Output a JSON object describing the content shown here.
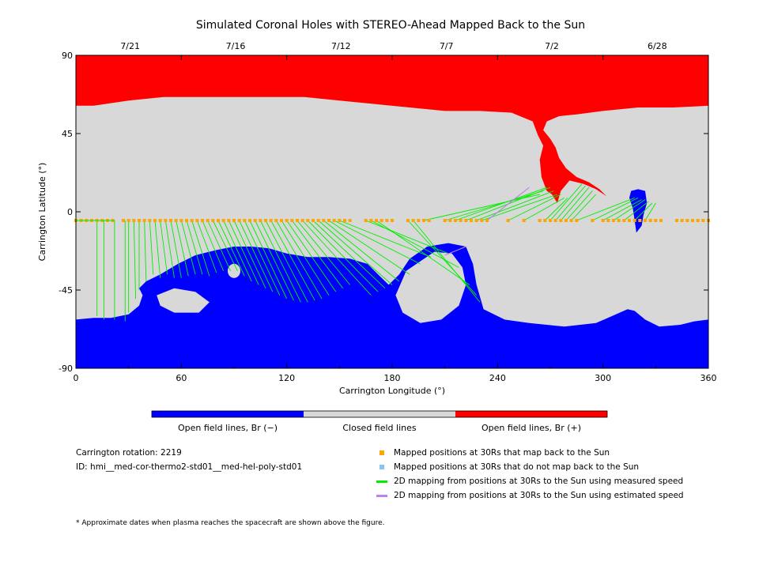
{
  "chart_data": {
    "type": "map",
    "title": "Simulated Coronal Holes with STEREO-Ahead Mapped Back to the Sun",
    "xlabel": "Carrington Longitude (°)",
    "ylabel": "Carrington Latitude (°)",
    "xlim": [
      0,
      360
    ],
    "ylim": [
      -90,
      90
    ],
    "x_ticks": [
      0,
      60,
      120,
      180,
      240,
      300,
      360
    ],
    "y_ticks": [
      90,
      45,
      0,
      -45,
      -90
    ],
    "y_tick_labels": [
      "90",
      "45",
      "0",
      "-45",
      "-90"
    ],
    "date_ticks": [
      {
        "lon": 30,
        "label": "7/21"
      },
      {
        "lon": 90,
        "label": "7/16"
      },
      {
        "lon": 150,
        "label": "7/12"
      },
      {
        "lon": 210,
        "label": "7/7"
      },
      {
        "lon": 270,
        "label": "7/2"
      },
      {
        "lon": 330,
        "label": "6/28"
      }
    ],
    "colors": {
      "open_negative": "#0000ff",
      "closed": "#d8d8d8",
      "open_positive": "#ff0000",
      "mapped_back": "#ffa500",
      "not_mapped": "#88c4f0",
      "measured_speed": "#00ee00",
      "estimated_speed": "#c080f0"
    },
    "colorbar": [
      {
        "label": "Open field lines, Br (−)",
        "color": "#0000ff"
      },
      {
        "label": "Closed field lines",
        "color": "#d8d8d8"
      },
      {
        "label": "Open field lines, Br (+)",
        "color": "#ff0000"
      }
    ],
    "spacecraft_track_lat": -5,
    "mapped_positions_lon": [
      0,
      3,
      6,
      9,
      12,
      15,
      18,
      21,
      27,
      30,
      33,
      36,
      39,
      42,
      45,
      48,
      51,
      54,
      57,
      60,
      63,
      66,
      69,
      72,
      75,
      78,
      81,
      84,
      87,
      90,
      93,
      96,
      99,
      102,
      105,
      108,
      111,
      114,
      117,
      120,
      123,
      126,
      129,
      132,
      135,
      138,
      141,
      144,
      147,
      150,
      153,
      156,
      165,
      168,
      171,
      174,
      177,
      180,
      189,
      192,
      195,
      198,
      201,
      210,
      213,
      216,
      219,
      222,
      225,
      228,
      231,
      234,
      246,
      255,
      264,
      267,
      270,
      273,
      276,
      279,
      282,
      285,
      294,
      300,
      303,
      306,
      309,
      312,
      315,
      318,
      321,
      324,
      327,
      330,
      333,
      342,
      345,
      348,
      351,
      354,
      357,
      360
    ],
    "footpoints_measured": [
      [
        12,
        -60
      ],
      [
        16,
        -62
      ],
      [
        22,
        -62
      ],
      [
        28,
        -63
      ],
      [
        30,
        -58
      ],
      [
        34,
        -50
      ],
      [
        36,
        -45
      ],
      [
        40,
        -40
      ],
      [
        44,
        -36
      ],
      [
        48,
        -38
      ],
      [
        52,
        -36
      ],
      [
        56,
        -38
      ],
      [
        60,
        -38
      ],
      [
        64,
        -37
      ],
      [
        68,
        -36
      ],
      [
        72,
        -36
      ],
      [
        76,
        -37
      ],
      [
        80,
        -35
      ],
      [
        84,
        -34
      ],
      [
        88,
        -34
      ],
      [
        92,
        -34
      ],
      [
        96,
        -37
      ],
      [
        100,
        -40
      ],
      [
        104,
        -42
      ],
      [
        108,
        -44
      ],
      [
        112,
        -46
      ],
      [
        116,
        -48
      ],
      [
        120,
        -50
      ],
      [
        124,
        -51
      ],
      [
        128,
        -52
      ],
      [
        132,
        -52
      ],
      [
        136,
        -51
      ],
      [
        140,
        -50
      ],
      [
        144,
        -48
      ],
      [
        148,
        -46
      ],
      [
        152,
        -44
      ],
      [
        156,
        -42
      ],
      [
        168,
        -48
      ],
      [
        172,
        -46
      ],
      [
        176,
        -44
      ],
      [
        180,
        -42
      ],
      [
        184,
        -40
      ],
      [
        190,
        -36
      ],
      [
        196,
        -30
      ],
      [
        202,
        -26
      ],
      [
        212,
        -24
      ],
      [
        218,
        -32
      ],
      [
        224,
        -42
      ],
      [
        228,
        -48
      ],
      [
        230,
        -52
      ],
      [
        264,
        10
      ],
      [
        266,
        12
      ],
      [
        268,
        14
      ],
      [
        270,
        14
      ],
      [
        272,
        12
      ],
      [
        274,
        10
      ],
      [
        276,
        10
      ],
      [
        278,
        8
      ],
      [
        280,
        8
      ],
      [
        288,
        16
      ],
      [
        290,
        15
      ],
      [
        292,
        14
      ],
      [
        294,
        12
      ],
      [
        296,
        10
      ],
      [
        318,
        8
      ],
      [
        320,
        8
      ],
      [
        322,
        7
      ],
      [
        324,
        7
      ],
      [
        326,
        6
      ],
      [
        328,
        5
      ],
      [
        330,
        5
      ]
    ],
    "footpoints_measured_src": [
      [
        12,
        -5
      ],
      [
        16,
        -5
      ],
      [
        22,
        -5
      ],
      [
        28,
        -5
      ],
      [
        30,
        -5
      ],
      [
        33,
        -5
      ],
      [
        36,
        -5
      ],
      [
        39,
        -5
      ],
      [
        42,
        -5
      ],
      [
        45,
        -5
      ],
      [
        48,
        -5
      ],
      [
        51,
        -5
      ],
      [
        54,
        -5
      ],
      [
        57,
        -5
      ],
      [
        60,
        -5
      ],
      [
        63,
        -5
      ],
      [
        66,
        -5
      ],
      [
        69,
        -5
      ],
      [
        72,
        -5
      ],
      [
        75,
        -5
      ],
      [
        78,
        -5
      ],
      [
        81,
        -5
      ],
      [
        84,
        -5
      ],
      [
        87,
        -5
      ],
      [
        90,
        -5
      ],
      [
        93,
        -5
      ],
      [
        96,
        -5
      ],
      [
        99,
        -5
      ],
      [
        102,
        -5
      ],
      [
        105,
        -5
      ],
      [
        108,
        -5
      ],
      [
        111,
        -5
      ],
      [
        114,
        -5
      ],
      [
        117,
        -5
      ],
      [
        120,
        -5
      ],
      [
        123,
        -5
      ],
      [
        126,
        -5
      ],
      [
        129,
        -5
      ],
      [
        132,
        -5
      ],
      [
        135,
        -5
      ],
      [
        138,
        -5
      ],
      [
        141,
        -5
      ],
      [
        144,
        -5
      ],
      [
        147,
        -5
      ],
      [
        150,
        -5
      ],
      [
        165,
        -5
      ],
      [
        168,
        -5
      ],
      [
        171,
        -5
      ],
      [
        189,
        -5
      ],
      [
        192,
        -5
      ],
      [
        198,
        -5
      ],
      [
        210,
        -5
      ],
      [
        216,
        -5
      ],
      [
        222,
        -5
      ],
      [
        228,
        -5
      ],
      [
        231,
        -5
      ],
      [
        246,
        -5
      ],
      [
        255,
        -5
      ],
      [
        267,
        -5
      ],
      [
        270,
        -5
      ],
      [
        273,
        -5
      ],
      [
        276,
        -5
      ],
      [
        279,
        -5
      ],
      [
        282,
        -5
      ],
      [
        285,
        -5
      ],
      [
        294,
        -5
      ],
      [
        300,
        -5
      ],
      [
        306,
        -5
      ],
      [
        312,
        -5
      ],
      [
        318,
        -5
      ],
      [
        324,
        -5
      ],
      [
        330,
        -5
      ],
      [
        336,
        -5
      ],
      [
        342,
        -5
      ],
      [
        348,
        -5
      ],
      [
        354,
        -5
      ],
      [
        360,
        -5
      ]
    ],
    "footpoints_estimated": [
      [
        [
          234,
          -5
        ],
        [
          258,
          14
        ]
      ],
      [
        [
          222,
          -20
        ],
        [
          210,
          -25
        ]
      ]
    ]
  },
  "info": {
    "carrington_rotation": "Carrington rotation: 2219",
    "model_id": "ID: hmi__med-cor-thermo2-std01__med-hel-poly-std01"
  },
  "key": [
    {
      "type": "square",
      "color": "#ffa500",
      "label": "Mapped positions at 30Rs that map back to the Sun"
    },
    {
      "type": "square",
      "color": "#88c4f0",
      "label": "Mapped positions at 30Rs that do not map back to the Sun"
    },
    {
      "type": "line",
      "color": "#00ee00",
      "label": "2D mapping from positions at 30Rs to the Sun using measured speed"
    },
    {
      "type": "line",
      "color": "#c080f0",
      "label": "2D mapping from positions at 30Rs to the Sun using estimated speed"
    }
  ],
  "footnote": "* Approximate dates when plasma reaches the spacecraft are shown above the figure."
}
